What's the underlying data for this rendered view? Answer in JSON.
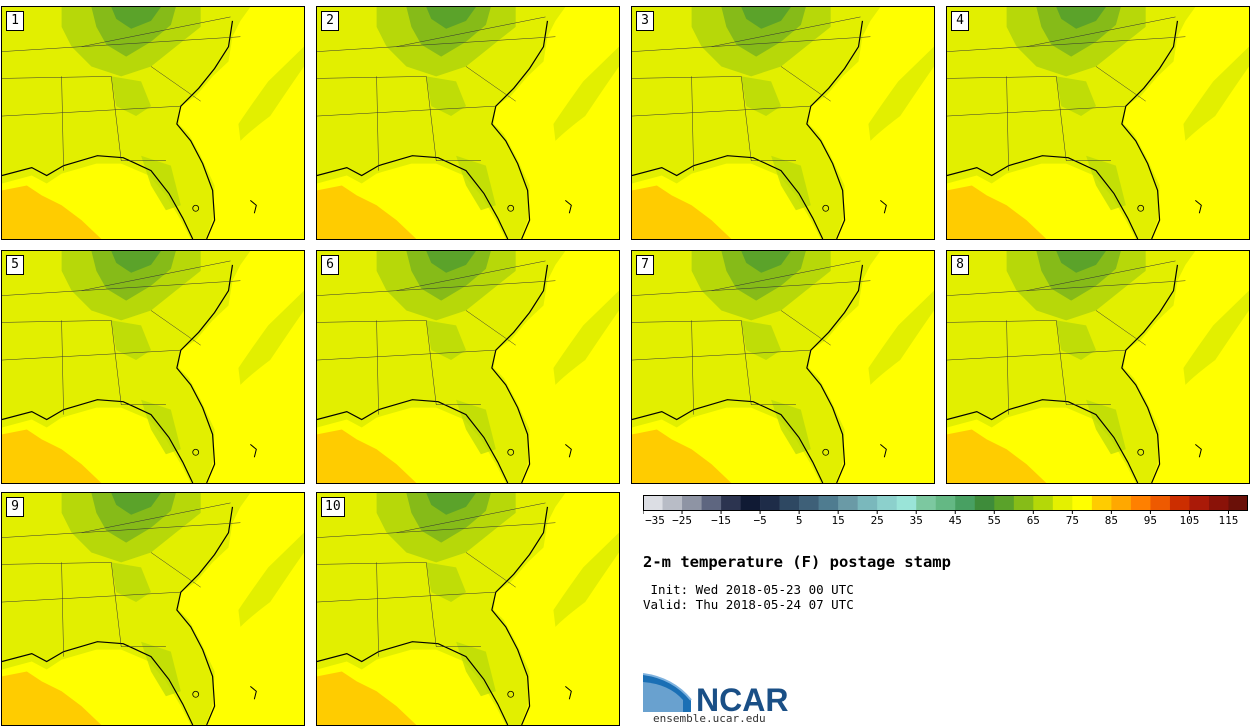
{
  "panels": [
    {
      "label": "1"
    },
    {
      "label": "2"
    },
    {
      "label": "3"
    },
    {
      "label": "4"
    },
    {
      "label": "5"
    },
    {
      "label": "6"
    },
    {
      "label": "7"
    },
    {
      "label": "8"
    },
    {
      "label": "9"
    },
    {
      "label": "10"
    }
  ],
  "colorbar": {
    "min": -35,
    "max": 120,
    "step": 5,
    "tick_labels": [
      "−35",
      "−25",
      "−15",
      "−5",
      "5",
      "15",
      "25",
      "35",
      "45",
      "55",
      "65",
      "75",
      "85",
      "95",
      "105",
      "115"
    ],
    "colors": [
      "#dcdee4",
      "#b8bcc6",
      "#8e94a4",
      "#5e6680",
      "#2c3450",
      "#101a34",
      "#1e2c48",
      "#2e4862",
      "#3e6078",
      "#4f7c90",
      "#6a9aa6",
      "#7ab8bc",
      "#8cd0cc",
      "#9ae4d8",
      "#7cc8a0",
      "#64b884",
      "#48a062",
      "#3e8c3a",
      "#5aa22a",
      "#86bc18",
      "#b4d808",
      "#e4f000",
      "#ffff00",
      "#ffcc00",
      "#ffa800",
      "#ff8000",
      "#ee5a00",
      "#cc2e00",
      "#aa1a08",
      "#8a1208",
      "#6a1008"
    ]
  },
  "map_colors": {
    "land_70_75": "#e2ef00",
    "land_65_70": "#b7d809",
    "land_60_65": "#86bb18",
    "land_55_60": "#5ba32a",
    "sea_75_80": "#ffff00",
    "sea_80_85": "#ffcc00",
    "coast": "#000000"
  },
  "title": "2-m temperature (F) postage stamp",
  "init": " Init: Wed 2018-05-23 00 UTC",
  "valid": "Valid: Thu 2018-05-24 07 UTC",
  "logo": {
    "text": "NCAR",
    "url": "ensemble.ucar.edu"
  }
}
